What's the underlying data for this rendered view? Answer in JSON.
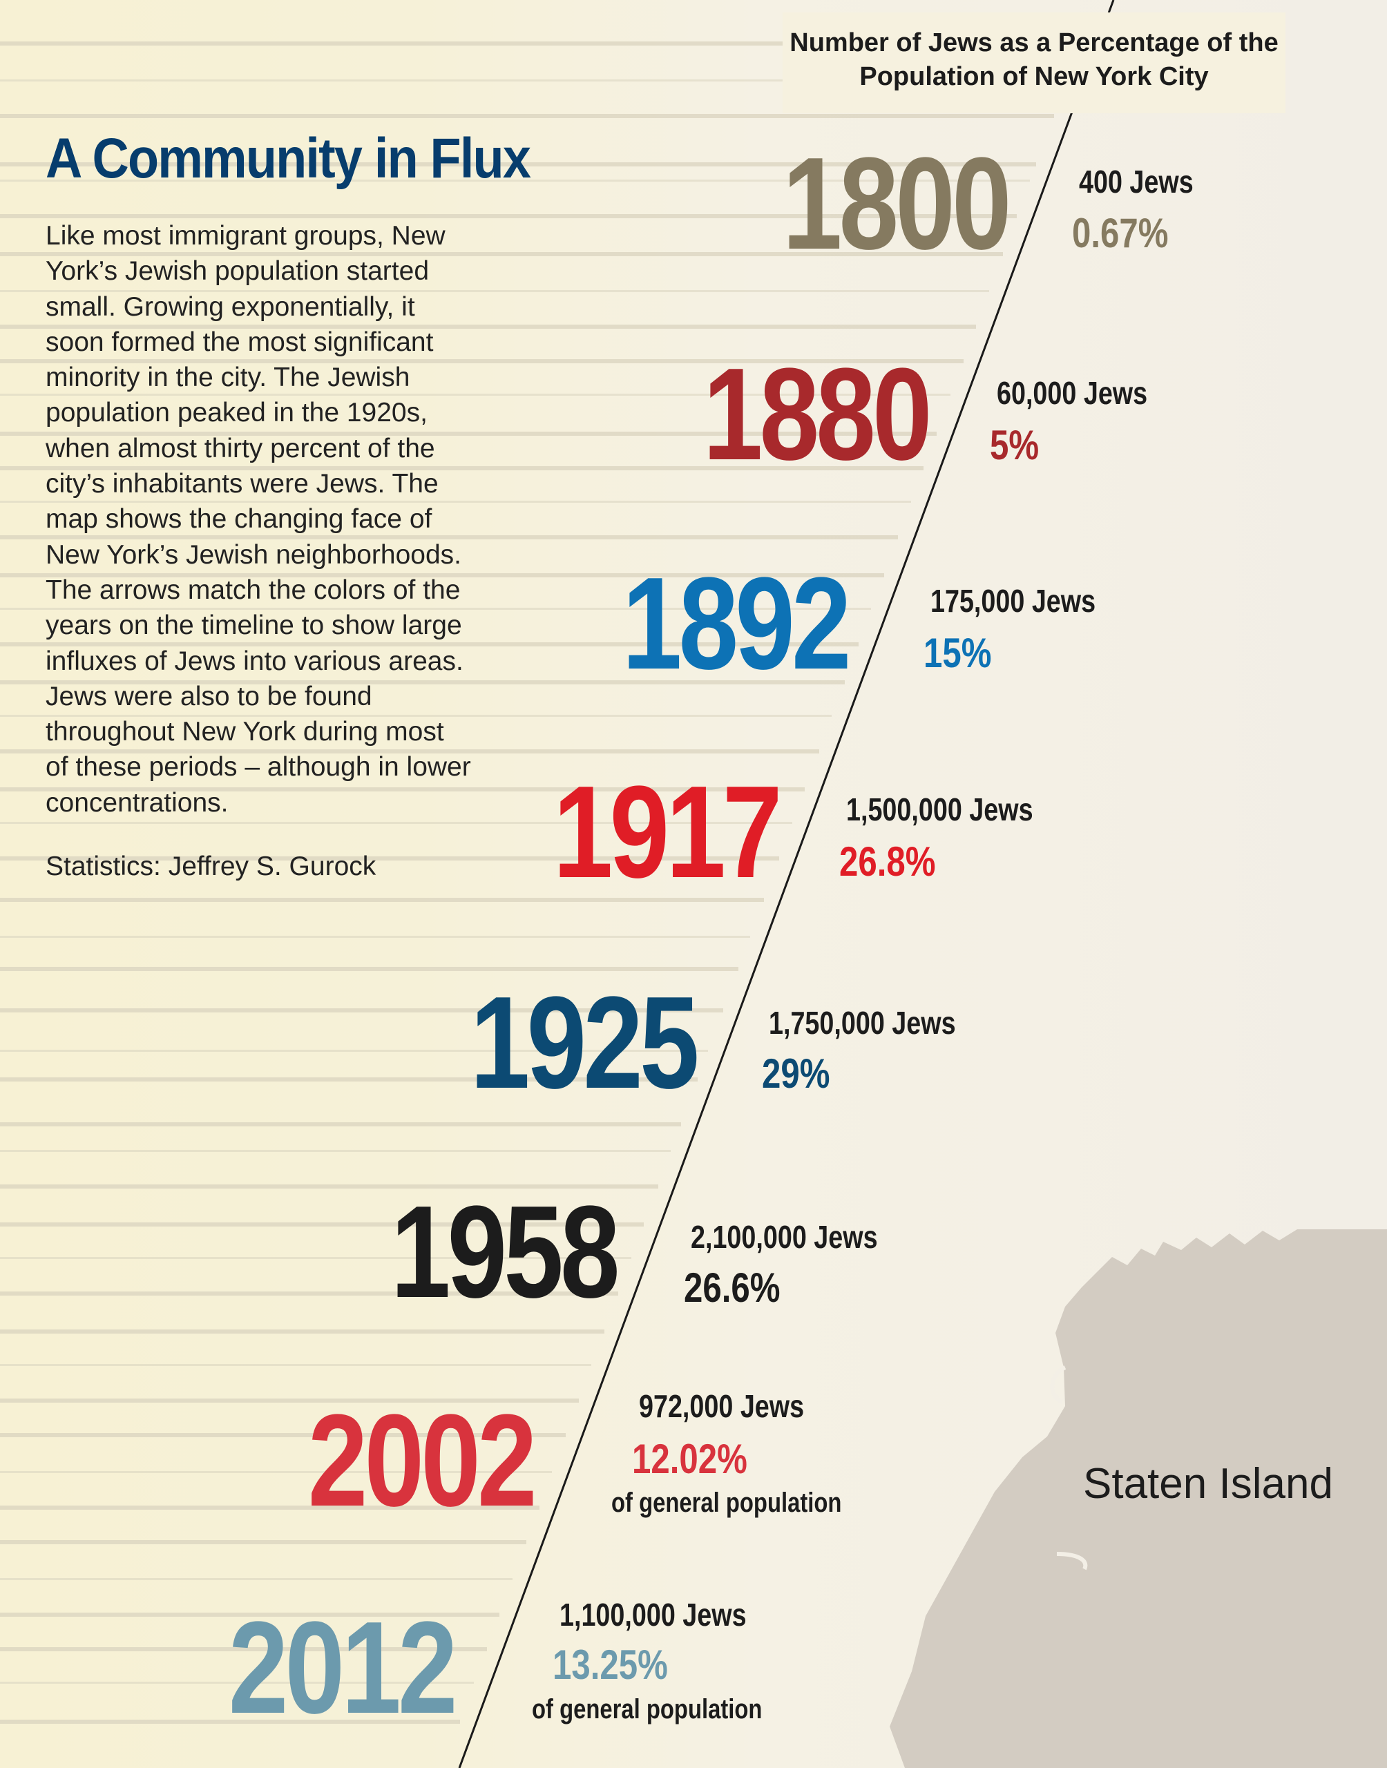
{
  "title": "A Community in Flux",
  "intro": "Like most immigrant groups, New York’s Jewish population started small. Growing exponentially, it soon formed the most significant minority in the city. The Jewish population peaked in the 1920s, when almost thirty percent of the city’s inhabitants were Jews. The map shows the changing face of New York’s Jewish neighborhoods. The arrows match the colors of the years on the timeline to show large influxes of Jews into various areas. Jews were also to be found throughout New York during most of these periods – although in lower concentrations.",
  "credit": "Statistics: Jeffrey S. Gurock",
  "chart_heading": "Number of Jews as a Percentage of the Population of New York City",
  "map_label": "Staten Island",
  "colors": {
    "title": "#073d6d",
    "stripe": "#d9d3bf",
    "map": "#d3ccc2",
    "line": "#1a1a1a"
  },
  "timeline": [
    {
      "year": "1800",
      "jews": "400 Jews",
      "percent": "0.67%",
      "note": "",
      "color": "#857a60"
    },
    {
      "year": "1880",
      "jews": "60,000 Jews",
      "percent": "5%",
      "note": "",
      "color": "#a8292c"
    },
    {
      "year": "1892",
      "jews": "175,000 Jews",
      "percent": "15%",
      "note": "",
      "color": "#0d72b5"
    },
    {
      "year": "1917",
      "jews": "1,500,000 Jews",
      "percent": "26.8%",
      "note": "",
      "color": "#e01d26"
    },
    {
      "year": "1925",
      "jews": "1,750,000 Jews",
      "percent": "29%",
      "note": "",
      "color": "#0c4a73"
    },
    {
      "year": "1958",
      "jews": "2,100,000 Jews",
      "percent": "26.6%",
      "note": "",
      "color": "#1c1c1c"
    },
    {
      "year": "2002",
      "jews": "972,000 Jews",
      "percent": "12.02%",
      "note": "of general population",
      "color": "#d8333d"
    },
    {
      "year": "2012",
      "jews": "1,100,000 Jews",
      "percent": "13.25%",
      "note": "of general population",
      "color": "#6c9aad"
    }
  ]
}
